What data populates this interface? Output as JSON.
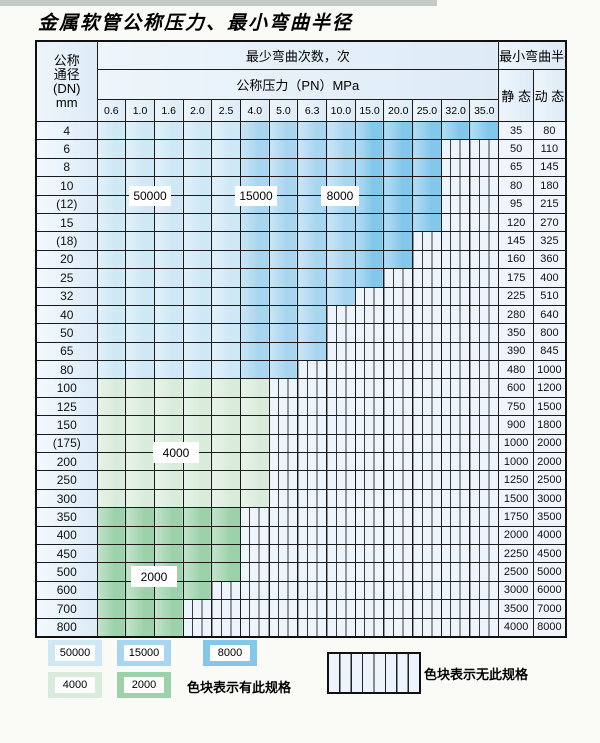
{
  "page": {
    "title": "金属软管公称压力、最小弯曲半径"
  },
  "table": {
    "header": {
      "dn_line1": "公称",
      "dn_line2": "通径",
      "dn_line3": "(DN)",
      "dn_line4": "mm",
      "bend_cycles_label": "最少弯曲次数，次",
      "pressure_label": "公称压力（PN）MPa",
      "radius_label": "最小弯曲半径",
      "static_label": "静 态",
      "dynamic_label": "动 态",
      "cols": [
        "0.6",
        "1.0",
        "1.6",
        "2.0",
        "2.5",
        "4.0",
        "5.0",
        "6.3",
        "10.0",
        "15.0",
        "20.0",
        "25.0",
        "32.0",
        "35.0"
      ]
    },
    "rows": [
      {
        "dn": "4",
        "zone": "blue",
        "colored": 14,
        "static": "35",
        "dynamic": "80"
      },
      {
        "dn": "6",
        "zone": "blue",
        "colored": 12,
        "static": "50",
        "dynamic": "110"
      },
      {
        "dn": "8",
        "zone": "blue",
        "colored": 12,
        "static": "65",
        "dynamic": "145"
      },
      {
        "dn": "10",
        "zone": "blue",
        "colored": 12,
        "static": "80",
        "dynamic": "180"
      },
      {
        "dn": "(12)",
        "zone": "blue",
        "colored": 12,
        "static": "95",
        "dynamic": "215"
      },
      {
        "dn": "15",
        "zone": "blue",
        "colored": 12,
        "static": "120",
        "dynamic": "270"
      },
      {
        "dn": "(18)",
        "zone": "blue",
        "colored": 11,
        "static": "145",
        "dynamic": "325"
      },
      {
        "dn": "20",
        "zone": "blue",
        "colored": 11,
        "static": "160",
        "dynamic": "360"
      },
      {
        "dn": "25",
        "zone": "blue",
        "colored": 10,
        "static": "175",
        "dynamic": "400"
      },
      {
        "dn": "32",
        "zone": "blue",
        "colored": 9,
        "static": "225",
        "dynamic": "510"
      },
      {
        "dn": "40",
        "zone": "blue",
        "colored": 8,
        "static": "280",
        "dynamic": "640"
      },
      {
        "dn": "50",
        "zone": "blue",
        "colored": 8,
        "static": "350",
        "dynamic": "800"
      },
      {
        "dn": "65",
        "zone": "blue",
        "colored": 8,
        "static": "390",
        "dynamic": "845"
      },
      {
        "dn": "80",
        "zone": "blue",
        "colored": 7,
        "static": "480",
        "dynamic": "1000"
      },
      {
        "dn": "100",
        "zone": "green4000",
        "colored": 6,
        "static": "600",
        "dynamic": "1200"
      },
      {
        "dn": "125",
        "zone": "green4000",
        "colored": 6,
        "static": "750",
        "dynamic": "1500"
      },
      {
        "dn": "150",
        "zone": "green4000",
        "colored": 6,
        "static": "900",
        "dynamic": "1800"
      },
      {
        "dn": "(175)",
        "zone": "green4000",
        "colored": 6,
        "static": "1000",
        "dynamic": "2000"
      },
      {
        "dn": "200",
        "zone": "green4000",
        "colored": 6,
        "static": "1000",
        "dynamic": "2000"
      },
      {
        "dn": "250",
        "zone": "green4000",
        "colored": 6,
        "static": "1250",
        "dynamic": "2500"
      },
      {
        "dn": "300",
        "zone": "green4000",
        "colored": 6,
        "static": "1500",
        "dynamic": "3000"
      },
      {
        "dn": "350",
        "zone": "green2000",
        "colored": 5,
        "static": "1750",
        "dynamic": "3500"
      },
      {
        "dn": "400",
        "zone": "green2000",
        "colored": 5,
        "static": "2000",
        "dynamic": "4000"
      },
      {
        "dn": "450",
        "zone": "green2000",
        "colored": 5,
        "static": "2250",
        "dynamic": "4500"
      },
      {
        "dn": "500",
        "zone": "green2000",
        "colored": 5,
        "static": "2500",
        "dynamic": "5000"
      },
      {
        "dn": "600",
        "zone": "green2000",
        "colored": 4,
        "static": "3000",
        "dynamic": "6000"
      },
      {
        "dn": "700",
        "zone": "green2000",
        "colored": 3,
        "static": "3500",
        "dynamic": "7000"
      },
      {
        "dn": "800",
        "zone": "green2000",
        "colored": 3,
        "static": "4000",
        "dynamic": "8000"
      }
    ],
    "blue_zone_breaks": [
      5,
      9
    ]
  },
  "zone_labels": {
    "l50000": "50000",
    "l15000": "15000",
    "l8000": "8000",
    "l4000": "4000",
    "l2000": "2000"
  },
  "colors": {
    "c50000": "#cfe8f6",
    "c15000": "#a8d5ef",
    "c8000": "#83c7eb",
    "c4000": "#d9ecdb",
    "c2000": "#9cd1aa",
    "hatch_bg": "#edf4fb",
    "hatch_line": "#3c3c3c"
  },
  "legend": {
    "swatches": [
      {
        "value": "50000",
        "zone": "c50000"
      },
      {
        "value": "15000",
        "zone": "c15000"
      },
      {
        "value": "8000",
        "zone": "c8000"
      },
      {
        "value": "4000",
        "zone": "c4000"
      },
      {
        "value": "2000",
        "zone": "c2000"
      }
    ],
    "available_text": "色块表示有此规格",
    "unavailable_text": "色块表示无此规格"
  }
}
